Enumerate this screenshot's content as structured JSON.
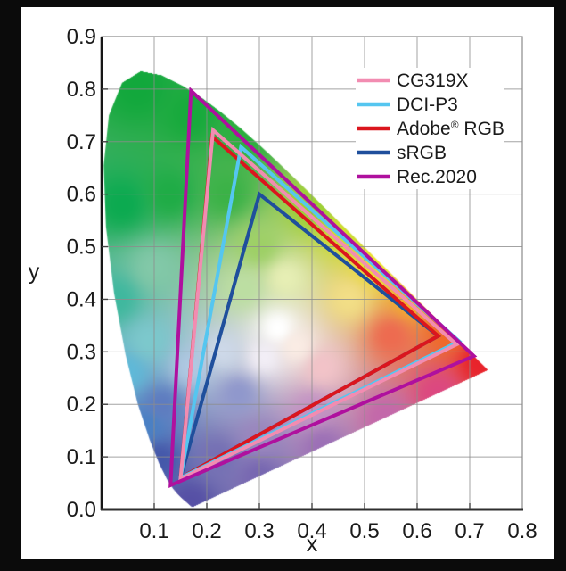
{
  "window": {
    "background": "#0b0b0b",
    "panel_background": "#ffffff"
  },
  "chart_data": {
    "type": "line",
    "title": "",
    "xlabel": "x",
    "ylabel": "y",
    "xlim": [
      0,
      0.8
    ],
    "ylim": [
      0,
      0.9
    ],
    "xticks": [
      "0.1",
      "0.2",
      "0.3",
      "0.4",
      "0.5",
      "0.6",
      "0.7",
      "0.8"
    ],
    "yticks": [
      "0.0",
      "0.1",
      "0.2",
      "0.3",
      "0.4",
      "0.5",
      "0.6",
      "0.7",
      "0.8",
      "0.9"
    ],
    "grid": true,
    "grid_color": "#8c8c8c",
    "legend_position": "top-right",
    "text_color": "#1a1a1a",
    "series": [
      {
        "name": "CG319X",
        "color": "#F28CB1",
        "vertices": [
          [
            0.675,
            0.314
          ],
          [
            0.212,
            0.722
          ],
          [
            0.15,
            0.058
          ]
        ]
      },
      {
        "name": "DCI-P3",
        "color": "#55C6F0",
        "vertices": [
          [
            0.68,
            0.32
          ],
          [
            0.265,
            0.69
          ],
          [
            0.15,
            0.06
          ]
        ]
      },
      {
        "name": "Adobe® RGB",
        "color": "#DB161E",
        "vertices": [
          [
            0.64,
            0.33
          ],
          [
            0.21,
            0.71
          ],
          [
            0.15,
            0.06
          ]
        ]
      },
      {
        "name": "sRGB",
        "color": "#1F4F9C",
        "vertices": [
          [
            0.64,
            0.33
          ],
          [
            0.3,
            0.6
          ],
          [
            0.15,
            0.06
          ]
        ]
      },
      {
        "name": "Rec.2020",
        "color": "#AF109E",
        "vertices": [
          [
            0.708,
            0.292
          ],
          [
            0.17,
            0.797
          ],
          [
            0.131,
            0.046
          ]
        ]
      }
    ],
    "z_order": [
      "sRGB",
      "Adobe® RGB",
      "DCI-P3",
      "CG319X",
      "Rec.2020"
    ],
    "spectral_locus": [
      [
        0.1741,
        0.005
      ],
      [
        0.174,
        0.005
      ],
      [
        0.1738,
        0.0049
      ],
      [
        0.1733,
        0.0048
      ],
      [
        0.1726,
        0.0048
      ],
      [
        0.1714,
        0.0051
      ],
      [
        0.1703,
        0.0058
      ],
      [
        0.1689,
        0.0069
      ],
      [
        0.1669,
        0.0086
      ],
      [
        0.1644,
        0.0109
      ],
      [
        0.1611,
        0.0138
      ],
      [
        0.1566,
        0.0177
      ],
      [
        0.151,
        0.0227
      ],
      [
        0.144,
        0.0297
      ],
      [
        0.1355,
        0.0399
      ],
      [
        0.1241,
        0.0578
      ],
      [
        0.1096,
        0.0868
      ],
      [
        0.0913,
        0.1327
      ],
      [
        0.0687,
        0.2007
      ],
      [
        0.0454,
        0.295
      ],
      [
        0.0235,
        0.4127
      ],
      [
        0.0082,
        0.5384
      ],
      [
        0.0039,
        0.6548
      ],
      [
        0.0139,
        0.7502
      ],
      [
        0.0389,
        0.812
      ],
      [
        0.0743,
        0.8338
      ],
      [
        0.1142,
        0.8262
      ],
      [
        0.1547,
        0.8059
      ],
      [
        0.1929,
        0.7816
      ],
      [
        0.2296,
        0.7543
      ],
      [
        0.2658,
        0.7243
      ],
      [
        0.3016,
        0.6923
      ],
      [
        0.3373,
        0.6589
      ],
      [
        0.3731,
        0.6245
      ],
      [
        0.4087,
        0.5896
      ],
      [
        0.4441,
        0.5547
      ],
      [
        0.4788,
        0.5202
      ],
      [
        0.5125,
        0.4866
      ],
      [
        0.5448,
        0.4544
      ],
      [
        0.5752,
        0.4242
      ],
      [
        0.6029,
        0.3965
      ],
      [
        0.627,
        0.3725
      ],
      [
        0.6482,
        0.3514
      ],
      [
        0.6658,
        0.334
      ],
      [
        0.6801,
        0.3197
      ],
      [
        0.6915,
        0.3083
      ],
      [
        0.7006,
        0.2993
      ],
      [
        0.7079,
        0.292
      ],
      [
        0.714,
        0.2859
      ],
      [
        0.719,
        0.2809
      ],
      [
        0.726,
        0.274
      ],
      [
        0.73,
        0.27
      ],
      [
        0.7334,
        0.2666
      ],
      [
        0.7347,
        0.2653
      ]
    ],
    "background_anchors": [
      {
        "x": 0.07,
        "y": 0.8,
        "c": "#12A83C"
      },
      {
        "x": 0.17,
        "y": 0.75,
        "c": "#17AA3C"
      },
      {
        "x": 0.28,
        "y": 0.72,
        "c": "#2BAE3E"
      },
      {
        "x": 0.04,
        "y": 0.58,
        "c": "#0CAA50"
      },
      {
        "x": 0.13,
        "y": 0.6,
        "c": "#1FAC46"
      },
      {
        "x": 0.24,
        "y": 0.6,
        "c": "#3BB247"
      },
      {
        "x": 0.3,
        "y": 0.5,
        "c": "#9ED066"
      },
      {
        "x": 0.27,
        "y": 0.42,
        "c": "#BCDEA2"
      },
      {
        "x": 0.35,
        "y": 0.44,
        "c": "#E6EEB4"
      },
      {
        "x": 0.1,
        "y": 0.46,
        "c": "#82C8A8"
      },
      {
        "x": 0.4,
        "y": 0.575,
        "c": "#9CD034"
      },
      {
        "x": 0.46,
        "y": 0.525,
        "c": "#CEDC30"
      },
      {
        "x": 0.52,
        "y": 0.465,
        "c": "#EEE02E"
      },
      {
        "x": 0.59,
        "y": 0.4,
        "c": "#F4AE2A"
      },
      {
        "x": 0.655,
        "y": 0.34,
        "c": "#F06A28"
      },
      {
        "x": 0.72,
        "y": 0.28,
        "c": "#E8232B"
      },
      {
        "x": 0.55,
        "y": 0.33,
        "c": "#ED6B50"
      },
      {
        "x": 0.47,
        "y": 0.4,
        "c": "#F2DE86"
      },
      {
        "x": 0.335,
        "y": 0.345,
        "c": "#FFFFFF"
      },
      {
        "x": 0.31,
        "y": 0.29,
        "c": "#F2EEF6"
      },
      {
        "x": 0.37,
        "y": 0.31,
        "c": "#FAECE4"
      },
      {
        "x": 0.42,
        "y": 0.27,
        "c": "#F2C3C8"
      },
      {
        "x": 0.03,
        "y": 0.4,
        "c": "#3FB89E"
      },
      {
        "x": 0.09,
        "y": 0.32,
        "c": "#7CC8CC"
      },
      {
        "x": 0.05,
        "y": 0.26,
        "c": "#5FB8D8"
      },
      {
        "x": 0.17,
        "y": 0.27,
        "c": "#AFC8E2"
      },
      {
        "x": 0.23,
        "y": 0.3,
        "c": "#CDD8E8"
      },
      {
        "x": 0.085,
        "y": 0.16,
        "c": "#4A80C4"
      },
      {
        "x": 0.115,
        "y": 0.2,
        "c": "#5E7CC0"
      },
      {
        "x": 0.11,
        "y": 0.095,
        "c": "#4558AA"
      },
      {
        "x": 0.17,
        "y": 0.012,
        "c": "#5650A5"
      },
      {
        "x": 0.22,
        "y": 0.1,
        "c": "#7570B4"
      },
      {
        "x": 0.3,
        "y": 0.135,
        "c": "#9A86BE"
      },
      {
        "x": 0.4,
        "y": 0.19,
        "c": "#C493C4"
      },
      {
        "x": 0.26,
        "y": 0.22,
        "c": "#9098CC"
      },
      {
        "x": 0.3,
        "y": 0.063,
        "c": "#7767B1"
      },
      {
        "x": 0.42,
        "y": 0.119,
        "c": "#9C70B6"
      },
      {
        "x": 0.54,
        "y": 0.175,
        "c": "#C368AA"
      },
      {
        "x": 0.64,
        "y": 0.222,
        "c": "#DC4880"
      }
    ]
  }
}
